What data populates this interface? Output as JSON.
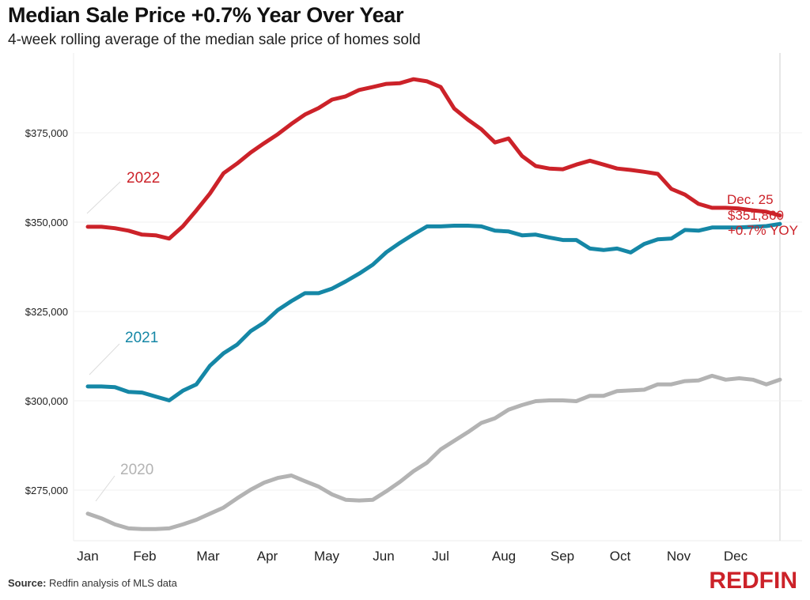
{
  "chart_data": {
    "type": "line",
    "title": "Median Sale Price +0.7% Year Over Year",
    "subtitle": "4-week rolling average of the median sale price of homes sold",
    "xlabel": "",
    "ylabel": "",
    "ylim": [
      262000,
      394000
    ],
    "yticks": [
      275000,
      300000,
      325000,
      350000,
      375000
    ],
    "ytick_labels": [
      "$275,000",
      "$300,000",
      "$325,000",
      "$350,000",
      "$375,000"
    ],
    "xticks": [
      "Jan",
      "Feb",
      "Mar",
      "Apr",
      "May",
      "Jun",
      "Jul",
      "Aug",
      "Sep",
      "Oct",
      "Nov",
      "Dec"
    ],
    "x_weeks": 52,
    "grid": true,
    "series": [
      {
        "name": "2022",
        "color": "#cc2229",
        "values": [
          348700,
          348700,
          348300,
          347600,
          346500,
          346300,
          345400,
          348800,
          353300,
          358000,
          363700,
          366400,
          369500,
          372100,
          374600,
          377500,
          380100,
          381900,
          384300,
          385200,
          387000,
          387800,
          388700,
          388900,
          390000,
          389400,
          387800,
          381800,
          378700,
          376000,
          372300,
          373400,
          368500,
          365700,
          365000,
          364800,
          366100,
          367200,
          366100,
          365000,
          364600,
          364100,
          363500,
          359300,
          357700,
          355100,
          354000,
          354000,
          353800,
          353300,
          352900,
          351860
        ]
      },
      {
        "name": "2021",
        "color": "#1587a6",
        "values": [
          304000,
          304000,
          303800,
          302500,
          302300,
          301200,
          300100,
          302800,
          304600,
          309800,
          313300,
          315700,
          319500,
          321900,
          325400,
          327900,
          330100,
          330100,
          331400,
          333400,
          335600,
          338100,
          341600,
          344200,
          346600,
          348800,
          348800,
          349000,
          349000,
          348800,
          347600,
          347400,
          346300,
          346500,
          345700,
          345000,
          345000,
          342600,
          342200,
          342600,
          341500,
          343900,
          345200,
          345400,
          347800,
          347600,
          348500,
          348500,
          348500,
          348700,
          348900,
          349500
        ]
      },
      {
        "name": "2020",
        "color": "#b3b3b3",
        "values": [
          268400,
          267100,
          265400,
          264300,
          264100,
          264100,
          264300,
          265400,
          266700,
          268400,
          270100,
          272700,
          275100,
          277100,
          278400,
          279100,
          277500,
          276000,
          273800,
          272300,
          272100,
          272300,
          274700,
          277300,
          280300,
          282700,
          286400,
          288800,
          291200,
          293800,
          295100,
          297500,
          298800,
          299900,
          300100,
          300100,
          299900,
          301400,
          301400,
          302700,
          302900,
          303100,
          304600,
          304600,
          305500,
          305700,
          307000,
          305900,
          306300,
          305900,
          304600,
          305900
        ]
      }
    ],
    "annotations": {
      "date": "Dec. 25",
      "value": "$351,860",
      "yoy": "+0.7% YOY"
    },
    "legend": "inline-labels"
  },
  "source_label": "Source:",
  "source_text": " Redfin analysis of MLS data",
  "brand": "REDFIN"
}
